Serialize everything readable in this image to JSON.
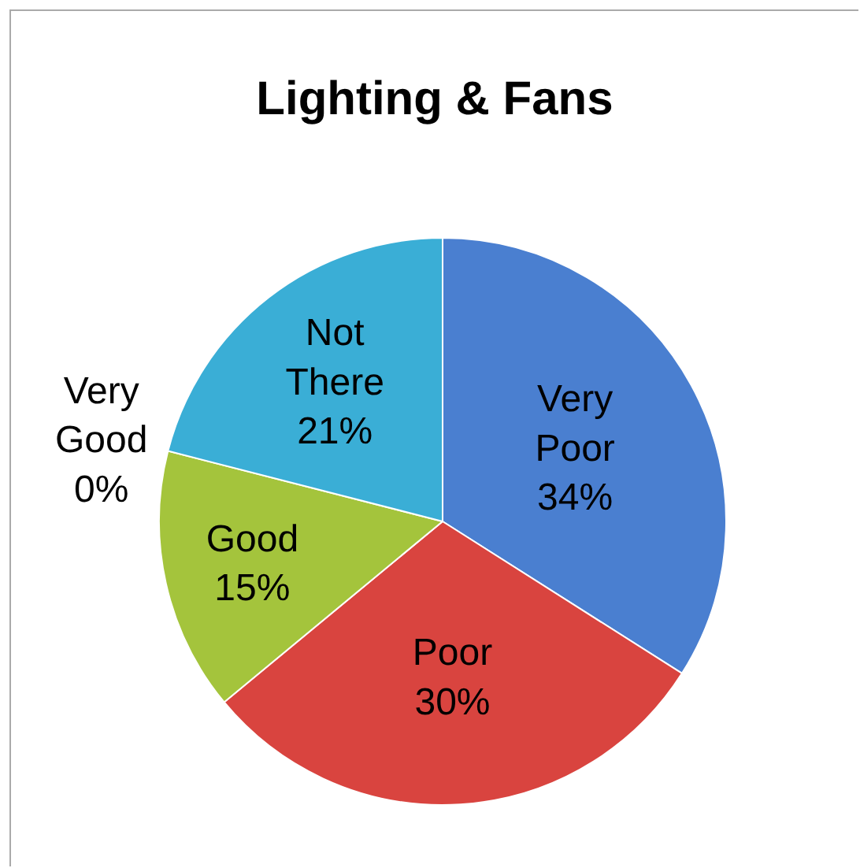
{
  "chart_data": {
    "type": "pie",
    "title": "Lighting & Fans",
    "categories": [
      "Very Poor",
      "Poor",
      "Good",
      "Very Good",
      "Not There"
    ],
    "values": [
      34,
      30,
      15,
      0,
      21
    ],
    "colors": [
      "#4a7fd0",
      "#d9443f",
      "#a4c43c",
      "#f0a030",
      "#3aaed6"
    ],
    "value_labels": [
      "34%",
      "30%",
      "15%",
      "0%",
      "21%"
    ],
    "legend": false
  }
}
